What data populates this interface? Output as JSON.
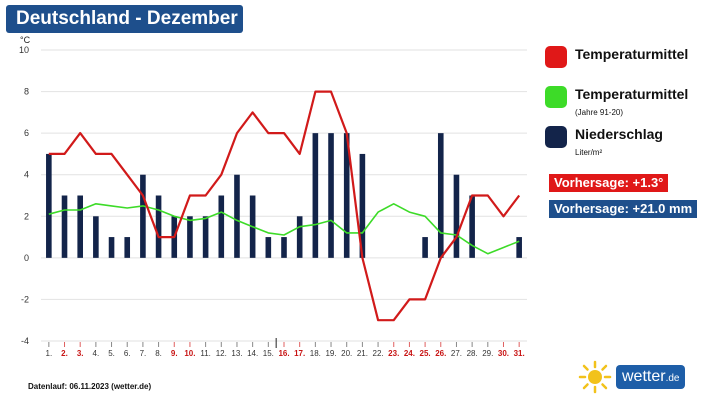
{
  "header": {
    "title": "Deutschland - Dezember"
  },
  "colors": {
    "temp": "#d11a1a",
    "normal": "#3ddb28",
    "precip": "#13244a",
    "title_bg": "#1e4f8c",
    "forecast_temp_bg": "#e01818",
    "forecast_precip_bg": "#1e4f8c",
    "weekend": "#c81414",
    "weekday": "#333333"
  },
  "legend": [
    {
      "label": "Temperaturmittel",
      "sub": "",
      "color": "#e01818"
    },
    {
      "label": "Temperaturmittel",
      "sub": "(Jahre 91-20)",
      "color": "#3ddb28"
    },
    {
      "label": "Niederschlag",
      "sub": "Liter/m²",
      "color": "#13244a"
    }
  ],
  "forecast": {
    "temp": "Vorhersage: +1.3°",
    "precip": "Vorhersage: +21.0 mm"
  },
  "footer": {
    "text": "Datenlauf: 06.11.2023 (wetter.de)"
  },
  "logo": {
    "main": "wetter",
    "suffix": ".de"
  },
  "chart_data": {
    "type": "line+bar",
    "unit_label": "°C",
    "ylim": [
      -4,
      10
    ],
    "y_ticks": [
      -4,
      -2,
      0,
      2,
      4,
      6,
      8,
      10
    ],
    "x_labels": [
      "1.",
      "2.",
      "3.",
      "4.",
      "5.",
      "6.",
      "7.",
      "8.",
      "9.",
      "10.",
      "11.",
      "12.",
      "13.",
      "14.",
      "15.",
      "16.",
      "17.",
      "18.",
      "19.",
      "20.",
      "21.",
      "22.",
      "23.",
      "24.",
      "25.",
      "26.",
      "27.",
      "28.",
      "29.",
      "30.",
      "31."
    ],
    "highlight_days": [
      2,
      3,
      9,
      10,
      16,
      17,
      23,
      24,
      25,
      26,
      30,
      31
    ],
    "series": [
      {
        "name": "Temperaturmittel",
        "type": "line",
        "values": [
          5,
          5,
          6,
          5,
          5,
          4,
          3,
          1,
          1,
          3,
          3,
          4,
          6,
          7,
          6,
          6,
          5,
          8,
          8,
          6,
          0,
          -3,
          -3,
          -2,
          -2,
          0,
          1,
          3,
          3,
          2,
          3
        ]
      },
      {
        "name": "Temperaturmittel (Jahre 91-20)",
        "type": "line",
        "values": [
          2.1,
          2.3,
          2.3,
          2.6,
          2.5,
          2.4,
          2.5,
          2.3,
          2.0,
          1.8,
          1.9,
          2.2,
          1.8,
          1.5,
          1.2,
          1.1,
          1.5,
          1.6,
          1.8,
          1.2,
          1.2,
          2.2,
          2.6,
          2.2,
          2.0,
          1.2,
          1.1,
          0.6,
          0.2,
          0.5,
          0.8
        ]
      },
      {
        "name": "Niederschlag",
        "type": "bar",
        "values": [
          5,
          3,
          3,
          2,
          1,
          1,
          4,
          3,
          2,
          2,
          2,
          3,
          4,
          3,
          1,
          1,
          2,
          6,
          6,
          6,
          5,
          0,
          0,
          0,
          1,
          6,
          4,
          3,
          0,
          0,
          1
        ]
      }
    ]
  }
}
